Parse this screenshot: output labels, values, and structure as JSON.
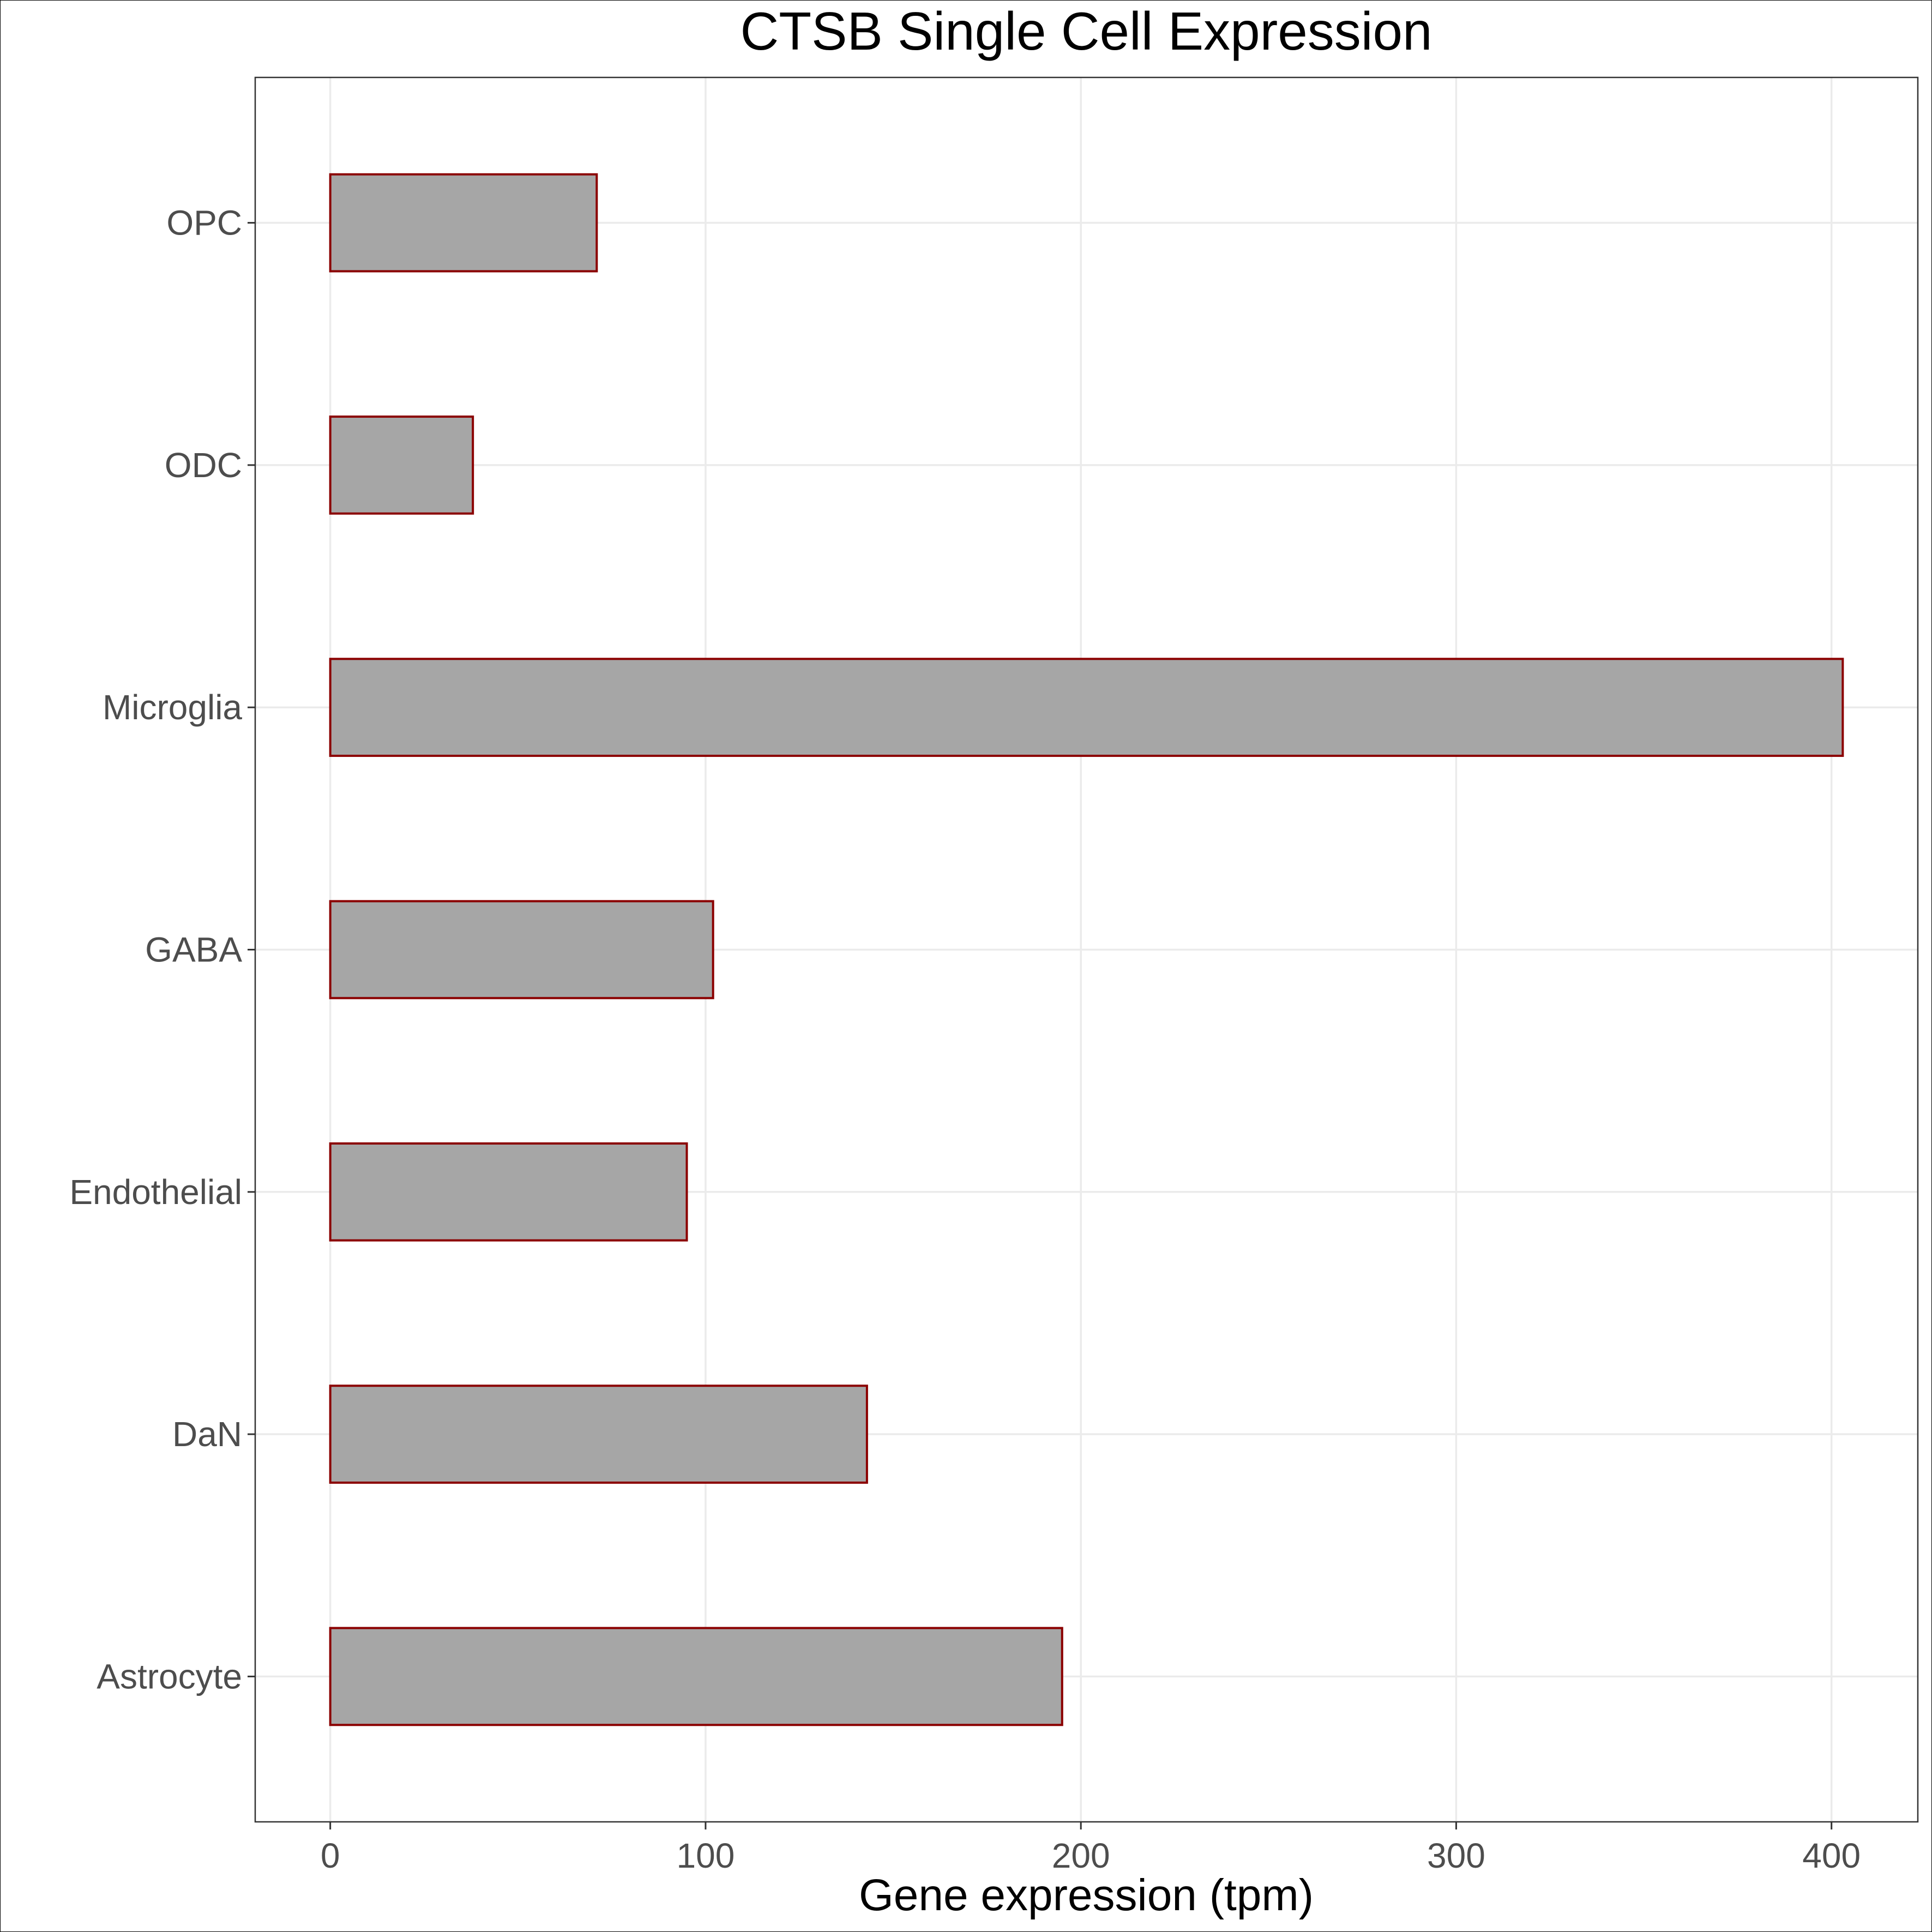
{
  "chart_data": {
    "type": "bar",
    "orientation": "horizontal",
    "title": "CTSB Single Cell Expression",
    "xlabel": "Gene expression (tpm)",
    "ylabel": "",
    "categories": [
      "Astrocyte",
      "DaN",
      "Endothelial",
      "GABA",
      "Microglia",
      "ODC",
      "OPC"
    ],
    "values": [
      195,
      143,
      95,
      102,
      403,
      38,
      71
    ],
    "xlim": [
      -20,
      423
    ],
    "xticks": [
      0,
      100,
      200,
      300,
      400
    ],
    "grid": true,
    "legend": "none",
    "colors": {
      "bar_fill": "#a6a6a6",
      "bar_outline": "#8b0000",
      "grid": "#ebebeb",
      "panel_border": "#333333",
      "tick_text": "#4d4d4d",
      "axis_title": "#000000"
    }
  }
}
